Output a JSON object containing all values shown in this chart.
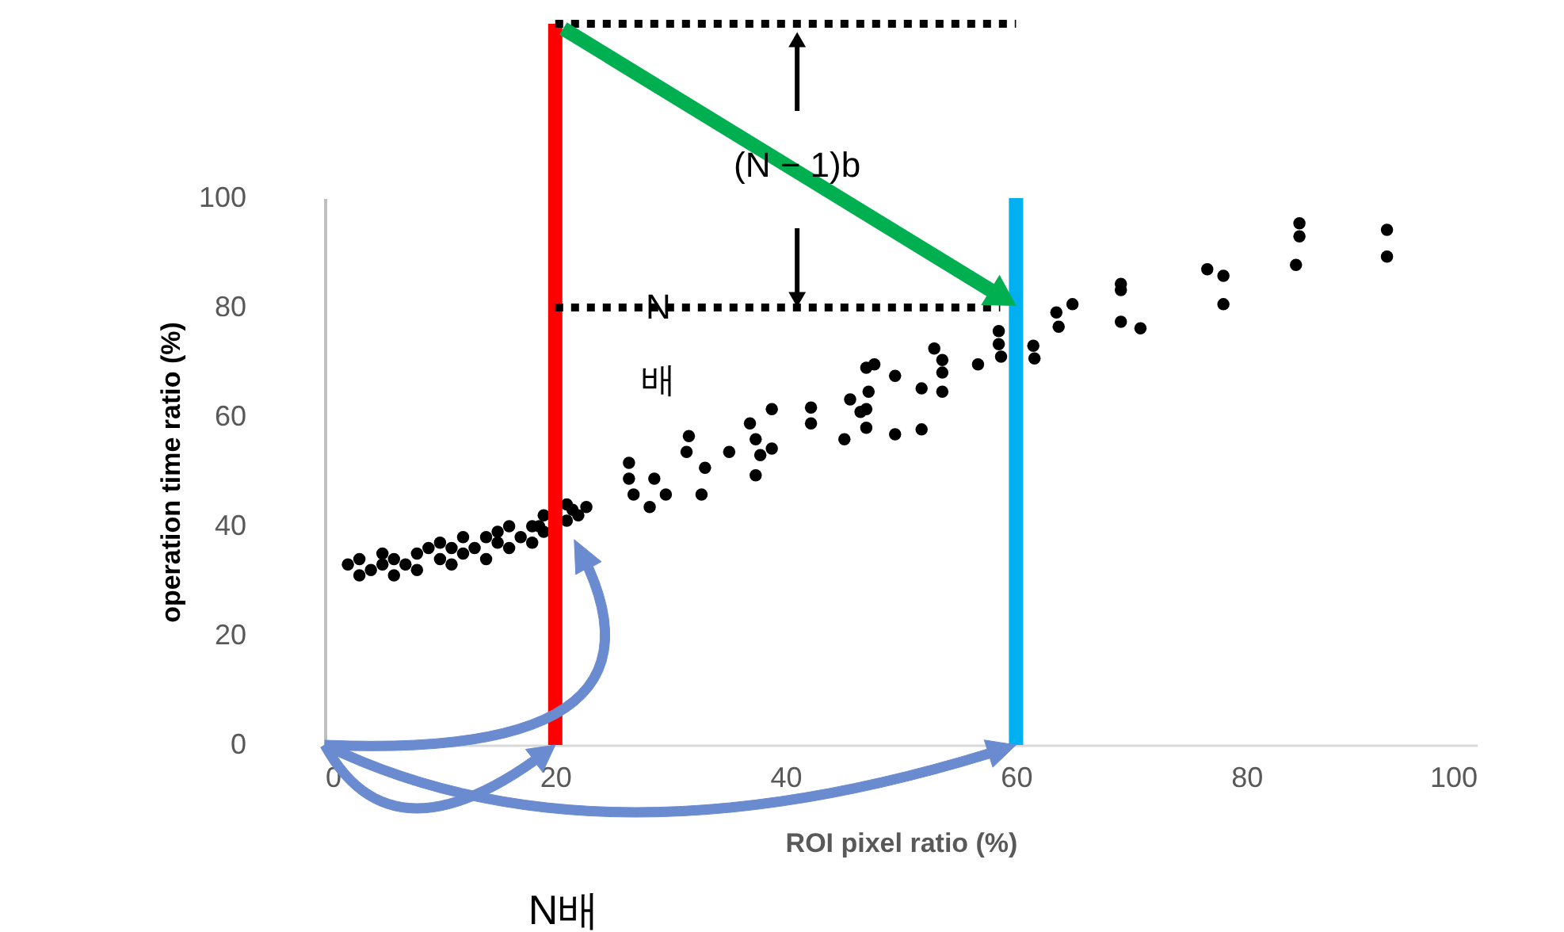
{
  "chart_data": {
    "type": "scatter",
    "xlabel": "ROI pixel ratio (%)",
    "ylabel": "operation time ratio (%)",
    "xlim": [
      0,
      100
    ],
    "ylim": [
      0,
      100
    ],
    "xticks": [
      0,
      20,
      40,
      60,
      80,
      100
    ],
    "yticks": [
      0,
      20,
      40,
      60,
      80,
      100
    ],
    "marker": "circle",
    "series": [
      {
        "color": "#000000",
        "x": [
          2,
          3,
          3,
          4,
          5,
          5,
          6,
          6,
          7,
          8,
          8,
          9,
          10,
          10,
          11,
          11,
          12,
          12,
          13,
          14,
          14,
          15,
          15,
          16,
          16,
          17,
          18,
          18,
          19,
          19,
          18.6,
          21.5,
          21,
          21,
          22,
          22.7,
          26.4,
          26.4,
          26.8,
          28.6,
          28.2,
          29.6,
          31.6,
          31.4,
          33,
          32.7,
          35.1,
          36.9,
          37.4,
          37.8,
          37.4,
          38.8,
          38.8,
          42.2,
          42.2,
          45.1,
          45.6,
          47,
          46.5,
          47.7,
          49.5,
          47.2,
          47,
          47,
          49.5,
          51.8,
          51.8,
          53.6,
          52.9,
          53.6,
          53.6,
          56.7,
          58.5,
          58.5,
          58.7,
          61.5,
          61.6,
          63.5,
          64.9,
          63.7,
          69.1,
          69.1,
          69.1,
          70.8,
          76.6,
          78,
          78,
          84.6,
          84.6,
          84.3,
          92.2,
          92.2
        ],
        "values": [
          33,
          31,
          34,
          32,
          33,
          35,
          31,
          34,
          33,
          35,
          32,
          36,
          34,
          37,
          33,
          36,
          35,
          38,
          36,
          34,
          38,
          37,
          39,
          36,
          40,
          38,
          37,
          40,
          39,
          42,
          40,
          43,
          41,
          44,
          42,
          43.5,
          51.6,
          48.7,
          45.8,
          48.7,
          43.5,
          45.8,
          56.5,
          53.6,
          50.7,
          45.8,
          53.6,
          58.8,
          55.9,
          53,
          49.3,
          61.4,
          54.2,
          61.7,
          58.8,
          55.9,
          63.2,
          69,
          60.9,
          69.6,
          67.5,
          64.6,
          61.4,
          58,
          56.8,
          57.7,
          65.2,
          64.6,
          72.5,
          70.4,
          68.1,
          69.6,
          75.7,
          73.3,
          71,
          73,
          70.7,
          79.1,
          80.6,
          76.5,
          84.3,
          83.2,
          77.4,
          76.2,
          87,
          85.8,
          80.6,
          95.4,
          93,
          87.8,
          94.2,
          89.3
        ]
      }
    ],
    "ref_lines": [
      {
        "axis": "x",
        "value": 20,
        "color": "#ff0000",
        "line_style": "solid"
      },
      {
        "axis": "x",
        "value": 60,
        "color": "#00b0f0",
        "line_style": "solid"
      },
      {
        "axis": "y",
        "value": 80,
        "color": "#000000",
        "line_style": "dotted"
      }
    ],
    "annotations": [
      {
        "text": "(N − 1)b",
        "x": 41,
        "y": 80
      },
      "N\n배",
      "N배"
    ]
  }
}
